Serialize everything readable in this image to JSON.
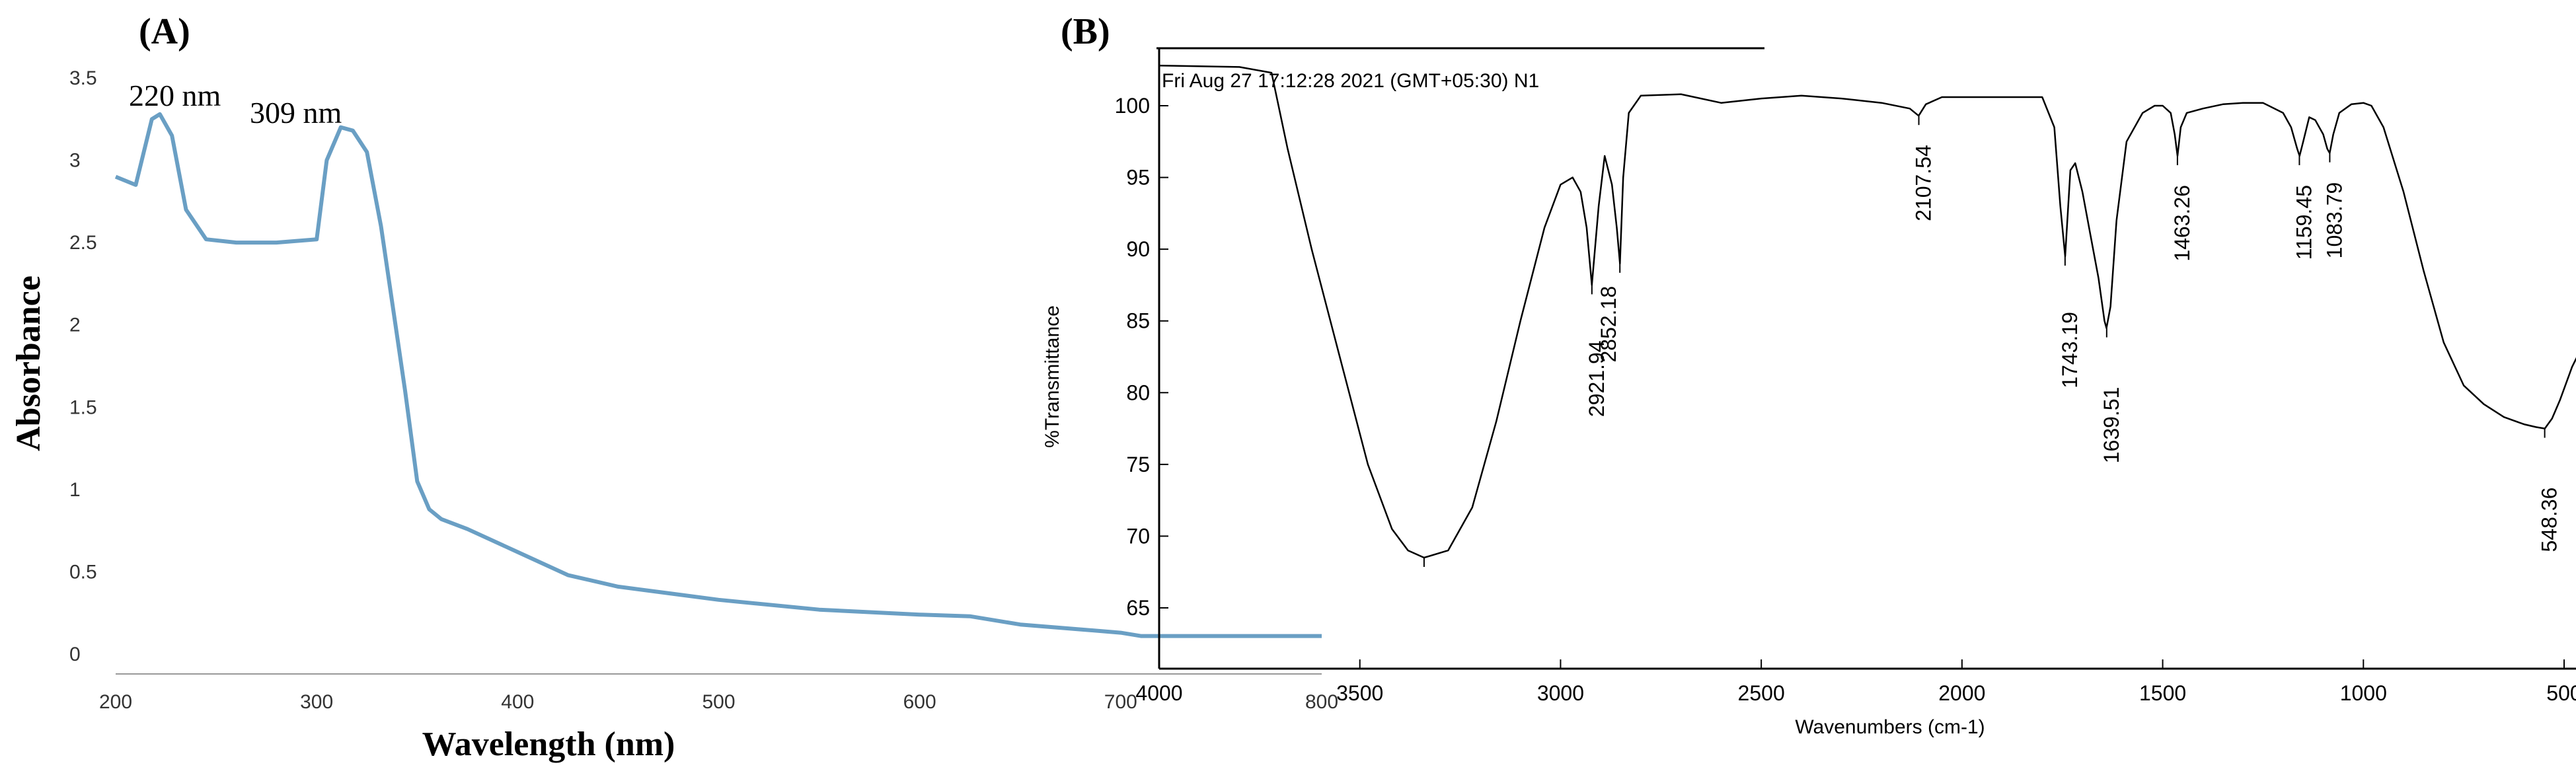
{
  "chart_data": [
    {
      "panel": "(A)",
      "type": "line",
      "xlabel": "Wavelength (nm)",
      "ylabel": "Absorbance",
      "xlim": [
        200,
        800
      ],
      "ylim": [
        0,
        3.5
      ],
      "xticks": [
        "200",
        "300",
        "400",
        "500",
        "600",
        "700",
        "800"
      ],
      "yticks": [
        "0",
        "0.5",
        "1",
        "1.5",
        "2",
        "2.5",
        "3",
        "3.5"
      ],
      "annotations": [
        {
          "text": "220 nm",
          "x": 220,
          "y": 3.3
        },
        {
          "text": "309 nm",
          "x": 309,
          "y": 3.2
        }
      ],
      "series": [
        {
          "color": "#6a9fc4",
          "x": [
            200,
            210,
            218,
            222,
            228,
            235,
            245,
            260,
            280,
            300,
            305,
            312,
            318,
            325,
            332,
            338,
            344,
            350,
            356,
            362,
            375,
            400,
            425,
            450,
            500,
            550,
            600,
            625,
            650,
            680,
            700,
            710,
            750,
            800
          ],
          "y": [
            2.9,
            2.85,
            3.25,
            3.28,
            3.15,
            2.7,
            2.52,
            2.5,
            2.5,
            2.52,
            3.0,
            3.2,
            3.18,
            3.05,
            2.6,
            2.1,
            1.6,
            1.05,
            0.88,
            0.82,
            0.76,
            0.62,
            0.48,
            0.41,
            0.33,
            0.27,
            0.24,
            0.23,
            0.18,
            0.15,
            0.13,
            0.11,
            0.11,
            0.11
          ]
        }
      ],
      "grid": false
    },
    {
      "panel": "(B)",
      "type": "line",
      "header": "Fri Aug 27 17:12:28 2021 (GMT+05:30) N1",
      "xlabel": "Wavenumbers (cm-1)",
      "ylabel": "%Transmittance",
      "xlim": [
        4000,
        400
      ],
      "ylim": [
        61,
        104
      ],
      "xticks": [
        "4000",
        "3500",
        "3000",
        "2500",
        "2000",
        "1500",
        "1000",
        "500"
      ],
      "yticks": [
        "65",
        "70",
        "75",
        "80",
        "85",
        "90",
        "95",
        "100"
      ],
      "peak_labels": [
        "2921.94",
        "2852.18",
        "2107.54",
        "1743.19",
        "1639.51",
        "1463.26",
        "1159.45",
        "1083.79",
        "548.36"
      ],
      "peaks": [
        {
          "wavenumber": 3340,
          "transmittance": 68.5
        },
        {
          "wavenumber": 2921.94,
          "transmittance": 87.5
        },
        {
          "wavenumber": 2852.18,
          "transmittance": 89.0
        },
        {
          "wavenumber": 2107.54,
          "transmittance": 99.3
        },
        {
          "wavenumber": 1743.19,
          "transmittance": 89.5
        },
        {
          "wavenumber": 1639.51,
          "transmittance": 84.5
        },
        {
          "wavenumber": 1463.26,
          "transmittance": 96.5
        },
        {
          "wavenumber": 1159.45,
          "transmittance": 96.5
        },
        {
          "wavenumber": 1083.79,
          "transmittance": 96.7
        },
        {
          "wavenumber": 548.36,
          "transmittance": 77.5
        }
      ],
      "series": [
        {
          "color": "#000000",
          "x": [
            4000,
            3800,
            3720,
            3680,
            3620,
            3550,
            3480,
            3420,
            3380,
            3340,
            3280,
            3220,
            3160,
            3100,
            3040,
            3000,
            2970,
            2950,
            2935,
            2922,
            2905,
            2890,
            2872,
            2860,
            2852,
            2844,
            2830,
            2800,
            2700,
            2600,
            2500,
            2400,
            2300,
            2200,
            2130,
            2108,
            2090,
            2050,
            1950,
            1850,
            1800,
            1770,
            1755,
            1743,
            1730,
            1718,
            1700,
            1680,
            1660,
            1645,
            1640,
            1630,
            1615,
            1590,
            1550,
            1520,
            1500,
            1480,
            1470,
            1463,
            1455,
            1440,
            1400,
            1350,
            1300,
            1250,
            1200,
            1180,
            1165,
            1159,
            1150,
            1135,
            1120,
            1100,
            1090,
            1084,
            1075,
            1060,
            1030,
            1000,
            980,
            950,
            900,
            850,
            800,
            750,
            700,
            650,
            600,
            570,
            548,
            530,
            510,
            480,
            450,
            420,
            410
          ],
          "y": [
            102.8,
            102.7,
            102.3,
            97.0,
            90.0,
            82.5,
            75.0,
            70.5,
            69.0,
            68.5,
            69.0,
            72.0,
            78.0,
            85.0,
            91.5,
            94.5,
            95.0,
            94.0,
            91.5,
            87.5,
            93.0,
            96.5,
            94.5,
            91.5,
            89.0,
            95.0,
            99.5,
            100.7,
            100.8,
            100.2,
            100.5,
            100.7,
            100.5,
            100.2,
            99.8,
            99.3,
            100.1,
            100.6,
            100.6,
            100.6,
            100.6,
            98.5,
            93.0,
            89.5,
            95.5,
            96.0,
            94.0,
            91.0,
            88.0,
            85.0,
            84.5,
            86.0,
            92.0,
            97.5,
            99.5,
            100.0,
            100.0,
            99.5,
            98.0,
            96.5,
            98.5,
            99.5,
            99.8,
            100.1,
            100.2,
            100.2,
            99.5,
            98.5,
            97.0,
            96.5,
            97.5,
            99.2,
            99.0,
            98.0,
            97.0,
            96.7,
            98.0,
            99.5,
            100.1,
            100.2,
            100.0,
            98.5,
            94.0,
            88.5,
            83.5,
            80.5,
            79.2,
            78.3,
            77.8,
            77.6,
            77.5,
            78.2,
            79.5,
            81.8,
            83.5,
            85.5,
            86.0
          ]
        }
      ],
      "grid": false
    }
  ]
}
